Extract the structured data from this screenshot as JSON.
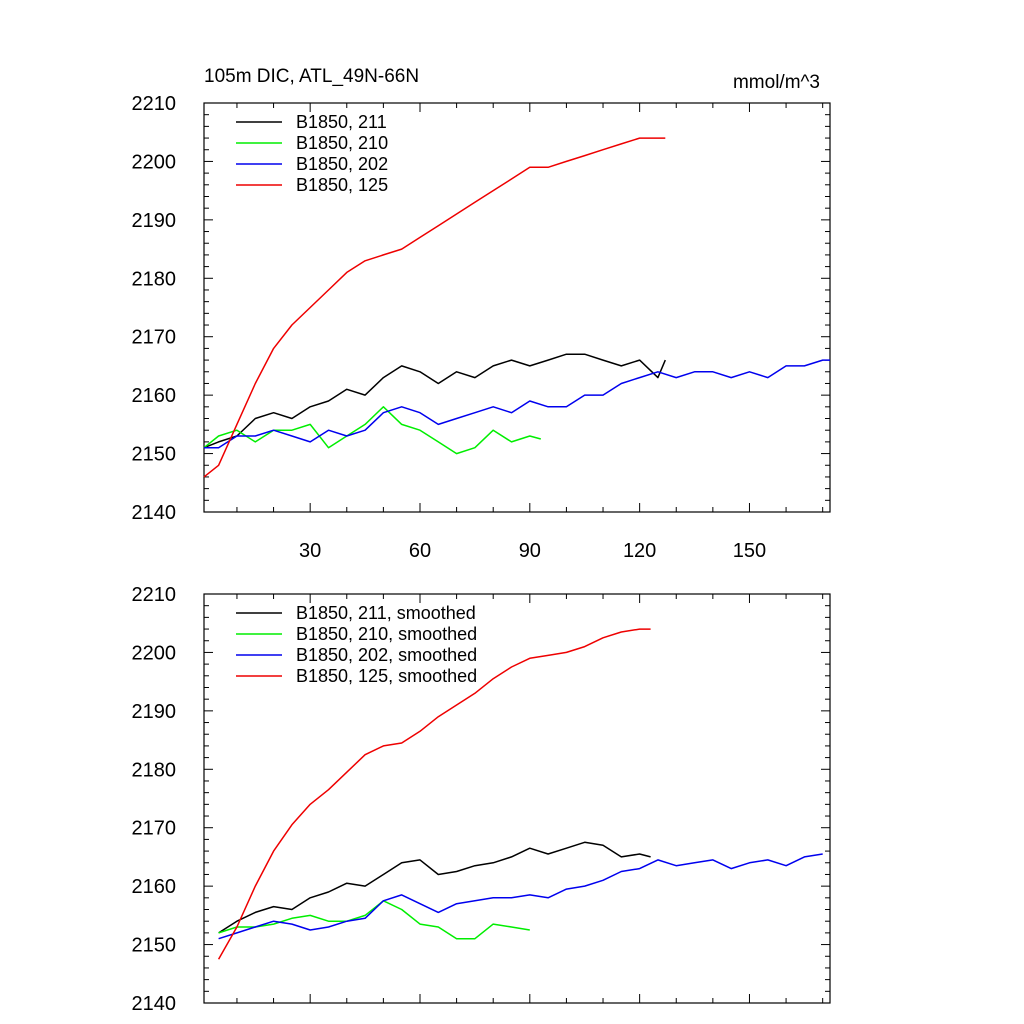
{
  "colors": {
    "black": "#000000",
    "green": "#00ee00",
    "blue": "#0000ee",
    "red": "#ee0000"
  },
  "chart_data": [
    {
      "type": "line",
      "title": "105m DIC, ATL_49N-66N",
      "units": "mmol/m^3",
      "xlim": [
        1,
        172
      ],
      "ylim": [
        2140,
        2210
      ],
      "xticks": [
        30,
        60,
        90,
        120,
        150
      ],
      "xtick_labels": [
        "30",
        "60",
        "90",
        "120",
        "150"
      ],
      "yticks": [
        2140,
        2150,
        2160,
        2170,
        2180,
        2190,
        2200,
        2210
      ],
      "ytick_labels": [
        "2140",
        "2150",
        "2160",
        "2170",
        "2180",
        "2190",
        "2200",
        "2210"
      ],
      "legend_position": "top-left",
      "grid": false,
      "series": [
        {
          "name": "B1850, 211",
          "color": "#000000",
          "x": [
            1,
            5,
            10,
            15,
            20,
            25,
            30,
            35,
            40,
            45,
            50,
            55,
            60,
            65,
            70,
            75,
            80,
            85,
            90,
            95,
            100,
            105,
            110,
            115,
            120,
            125,
            127
          ],
          "y": [
            2151,
            2152,
            2153,
            2156,
            2157,
            2156,
            2158,
            2159,
            2161,
            2160,
            2163,
            2165,
            2164,
            2162,
            2164,
            2163,
            2165,
            2166,
            2165,
            2166,
            2167,
            2167,
            2166,
            2165,
            2166,
            2163,
            2166
          ]
        },
        {
          "name": "B1850, 210",
          "color": "#00ee00",
          "x": [
            1,
            5,
            10,
            15,
            20,
            25,
            30,
            35,
            40,
            45,
            50,
            55,
            60,
            65,
            70,
            75,
            80,
            85,
            90,
            93
          ],
          "y": [
            2151,
            2153,
            2154,
            2152,
            2154,
            2154,
            2155,
            2151,
            2153,
            2155,
            2158,
            2155,
            2154,
            2152,
            2150,
            2151,
            2154,
            2152,
            2153,
            2152.5
          ]
        },
        {
          "name": "B1850, 202",
          "color": "#0000ee",
          "x": [
            1,
            5,
            10,
            15,
            20,
            25,
            30,
            35,
            40,
            45,
            50,
            55,
            60,
            65,
            70,
            75,
            80,
            85,
            90,
            95,
            100,
            105,
            110,
            115,
            120,
            125,
            130,
            135,
            140,
            145,
            150,
            155,
            160,
            165,
            170,
            172
          ],
          "y": [
            2151,
            2151,
            2153,
            2153,
            2154,
            2153,
            2152,
            2154,
            2153,
            2154,
            2157,
            2158,
            2157,
            2155,
            2156,
            2157,
            2158,
            2157,
            2159,
            2158,
            2158,
            2160,
            2160,
            2162,
            2163,
            2164,
            2163,
            2164,
            2164,
            2163,
            2164,
            2163,
            2165,
            2165,
            2166,
            2166
          ]
        },
        {
          "name": "B1850, 125",
          "color": "#ee0000",
          "x": [
            1,
            5,
            10,
            15,
            20,
            25,
            30,
            35,
            40,
            45,
            50,
            55,
            60,
            65,
            70,
            75,
            80,
            85,
            90,
            95,
            100,
            105,
            110,
            115,
            120,
            125,
            127
          ],
          "y": [
            2146,
            2148,
            2155,
            2162,
            2168,
            2172,
            2175,
            2178,
            2181,
            2183,
            2184,
            2185,
            2187,
            2189,
            2191,
            2193,
            2195,
            2197,
            2199,
            2199,
            2200,
            2201,
            2202,
            2203,
            2204,
            2204,
            2204
          ]
        }
      ]
    },
    {
      "type": "line",
      "title": "",
      "xlim": [
        1,
        172
      ],
      "ylim": [
        2140,
        2210
      ],
      "yticks": [
        2140,
        2150,
        2160,
        2170,
        2180,
        2190,
        2200,
        2210
      ],
      "ytick_labels": [
        "2140",
        "2150",
        "2160",
        "2170",
        "2180",
        "2190",
        "2200",
        "2210"
      ],
      "legend_position": "top-left",
      "grid": false,
      "series": [
        {
          "name": "B1850, 211, smoothed",
          "color": "#000000",
          "x": [
            5,
            10,
            15,
            20,
            25,
            30,
            35,
            40,
            45,
            50,
            55,
            60,
            65,
            70,
            75,
            80,
            85,
            90,
            95,
            100,
            105,
            110,
            115,
            120,
            123
          ],
          "y": [
            2152,
            2154,
            2155.5,
            2156.5,
            2156,
            2158,
            2159,
            2160.5,
            2160,
            2162,
            2164,
            2164.5,
            2162,
            2162.5,
            2163.5,
            2164,
            2165,
            2166.5,
            2165.5,
            2166.5,
            2167.5,
            2167,
            2165,
            2165.5,
            2165
          ]
        },
        {
          "name": "B1850, 210, smoothed",
          "color": "#00ee00",
          "x": [
            5,
            10,
            15,
            20,
            25,
            30,
            35,
            40,
            45,
            50,
            55,
            60,
            65,
            70,
            75,
            80,
            85,
            90
          ],
          "y": [
            2152,
            2153,
            2153,
            2153.5,
            2154.5,
            2155,
            2154,
            2154,
            2155,
            2157.5,
            2156,
            2153.5,
            2153,
            2151,
            2151,
            2153.5,
            2153,
            2152.5
          ]
        },
        {
          "name": "B1850, 202, smoothed",
          "color": "#0000ee",
          "x": [
            5,
            10,
            15,
            20,
            25,
            30,
            35,
            40,
            45,
            50,
            55,
            60,
            65,
            70,
            75,
            80,
            85,
            90,
            95,
            100,
            105,
            110,
            115,
            120,
            125,
            130,
            135,
            140,
            145,
            150,
            155,
            160,
            165,
            170
          ],
          "y": [
            2151,
            2152,
            2153,
            2154,
            2153.5,
            2152.5,
            2153,
            2154,
            2154.5,
            2157.5,
            2158.5,
            2157,
            2155.5,
            2157,
            2157.5,
            2158,
            2158,
            2158.5,
            2158,
            2159.5,
            2160,
            2161,
            2162.5,
            2163,
            2164.5,
            2163.5,
            2164,
            2164.5,
            2163,
            2164,
            2164.5,
            2163.5,
            2165,
            2165.5
          ]
        },
        {
          "name": "B1850, 125, smoothed",
          "color": "#ee0000",
          "x": [
            5,
            10,
            15,
            20,
            25,
            30,
            35,
            40,
            45,
            50,
            55,
            60,
            65,
            70,
            75,
            80,
            85,
            90,
            95,
            100,
            105,
            110,
            115,
            120,
            123
          ],
          "y": [
            2147.5,
            2153,
            2160,
            2166,
            2170.5,
            2174,
            2176.5,
            2179.5,
            2182.5,
            2184,
            2184.5,
            2186.5,
            2189,
            2191,
            2193,
            2195.5,
            2197.5,
            2199,
            2199.5,
            2200,
            2201,
            2202.5,
            2203.5,
            2204,
            2204
          ]
        }
      ]
    }
  ]
}
